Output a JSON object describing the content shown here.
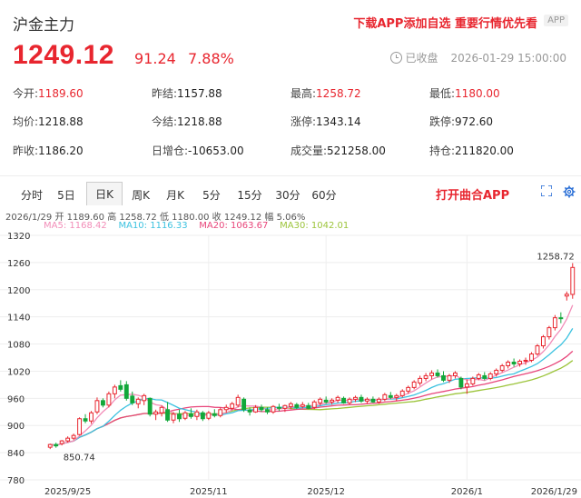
{
  "header": {
    "title": "沪金主力",
    "promo": "下载APP添加自选 重要行情优先看",
    "app_tag": "APP",
    "price": "1249.12",
    "change": "91.24",
    "change_pct": "7.88%",
    "status": "已收盘",
    "datetime": "2026-01-29 15:00:00"
  },
  "stats": [
    [
      {
        "label": "今开:",
        "value": "1189.60",
        "color": "red"
      },
      {
        "label": "昨结:",
        "value": "1157.88",
        "color": ""
      },
      {
        "label": "最高:",
        "value": "1258.72",
        "color": "red"
      },
      {
        "label": "最低:",
        "value": "1180.00",
        "color": "red"
      }
    ],
    [
      {
        "label": "均价:",
        "value": "1218.88",
        "color": ""
      },
      {
        "label": "今结:",
        "value": "1218.88",
        "color": ""
      },
      {
        "label": "涨停:",
        "value": "1343.14",
        "color": ""
      },
      {
        "label": "跌停:",
        "value": "972.60",
        "color": ""
      }
    ],
    [
      {
        "label": "昨收:",
        "value": "1186.20",
        "color": ""
      },
      {
        "label": "日增仓:",
        "value": "-10653.00",
        "color": ""
      },
      {
        "label": "成交量:",
        "value": "521258.00",
        "color": ""
      },
      {
        "label": "持仓:",
        "value": "211820.00",
        "color": ""
      }
    ]
  ],
  "tabs": [
    "分时",
    "5日",
    "日K",
    "周K",
    "月K",
    "5分",
    "15分",
    "30分",
    "60分"
  ],
  "active_tab": "日K",
  "open_app": "打开曲合APP",
  "kline_info": {
    "date": "2026/1/29",
    "open_label": "开",
    "open": "1189.60",
    "high_label": "高",
    "high": "1258.72",
    "low_label": "低",
    "low": "1180.00",
    "close_label": "收",
    "close": "1249.12",
    "amp_label": "幅",
    "amp": "5.06%"
  },
  "ma_info": [
    {
      "label": "MA5:",
      "value": "1168.42",
      "color": "#f28db8"
    },
    {
      "label": "MA10:",
      "value": "1116.33",
      "color": "#3cc2e0"
    },
    {
      "label": "MA20:",
      "value": "1063.67",
      "color": "#e8457a"
    },
    {
      "label": "MA30:",
      "value": "1042.01",
      "color": "#9cc43a"
    }
  ],
  "colors": {
    "up": "#e8262f",
    "down": "#12a83a",
    "ma5": "#f28db8",
    "ma10": "#3cc2e0",
    "ma20": "#e8457a",
    "ma30": "#9cc43a"
  },
  "icons": {
    "status": "clock-icon",
    "expand": "expand-icon",
    "settings": "gear-icon"
  },
  "chart_data": {
    "type": "candlestick",
    "ylim": [
      780,
      1320
    ],
    "yticks": [
      1320,
      1260,
      1200,
      1140,
      1080,
      1020,
      960,
      900,
      840,
      780
    ],
    "xticks": [
      {
        "label": "2025/9/25",
        "i": 3
      },
      {
        "label": "2025/11",
        "i": 27
      },
      {
        "label": "2025/12",
        "i": 47
      },
      {
        "label": "2026/1",
        "i": 71
      },
      {
        "label": "2026/1/29",
        "i": 89
      }
    ],
    "max_label": "1258.72",
    "min_label": "850.74",
    "candles": [
      [
        852,
        860,
        848,
        858
      ],
      [
        858,
        862,
        851,
        855
      ],
      [
        860,
        868,
        856,
        866
      ],
      [
        866,
        876,
        862,
        872
      ],
      [
        872,
        882,
        868,
        878
      ],
      [
        880,
        918,
        878,
        915
      ],
      [
        915,
        925,
        905,
        910
      ],
      [
        910,
        932,
        904,
        928
      ],
      [
        930,
        962,
        925,
        955
      ],
      [
        955,
        960,
        940,
        945
      ],
      [
        945,
        975,
        940,
        970
      ],
      [
        970,
        990,
        960,
        985
      ],
      [
        988,
        1000,
        975,
        980
      ],
      [
        990,
        998,
        955,
        960
      ],
      [
        965,
        975,
        945,
        950
      ],
      [
        948,
        962,
        938,
        958
      ],
      [
        955,
        970,
        945,
        966
      ],
      [
        960,
        962,
        920,
        925
      ],
      [
        925,
        935,
        912,
        930
      ],
      [
        928,
        944,
        920,
        940
      ],
      [
        935,
        952,
        908,
        912
      ],
      [
        912,
        930,
        905,
        925
      ],
      [
        925,
        935,
        908,
        915
      ],
      [
        916,
        932,
        912,
        928
      ],
      [
        926,
        938,
        915,
        920
      ],
      [
        920,
        935,
        912,
        930
      ],
      [
        928,
        932,
        910,
        915
      ],
      [
        916,
        932,
        912,
        928
      ],
      [
        926,
        936,
        918,
        922
      ],
      [
        922,
        940,
        918,
        935
      ],
      [
        935,
        946,
        928,
        940
      ],
      [
        938,
        952,
        934,
        948
      ],
      [
        945,
        968,
        940,
        962
      ],
      [
        958,
        962,
        930,
        935
      ],
      [
        934,
        940,
        922,
        930
      ],
      [
        930,
        945,
        928,
        940
      ],
      [
        940,
        946,
        930,
        935
      ],
      [
        935,
        940,
        925,
        930
      ],
      [
        930,
        945,
        926,
        942
      ],
      [
        940,
        948,
        932,
        938
      ],
      [
        938,
        946,
        930,
        944
      ],
      [
        942,
        952,
        936,
        948
      ],
      [
        946,
        950,
        936,
        940
      ],
      [
        942,
        952,
        938,
        946
      ],
      [
        944,
        950,
        936,
        938
      ],
      [
        940,
        956,
        936,
        952
      ],
      [
        950,
        962,
        944,
        958
      ],
      [
        956,
        964,
        948,
        952
      ],
      [
        952,
        960,
        946,
        956
      ],
      [
        956,
        966,
        950,
        962
      ],
      [
        960,
        964,
        948,
        950
      ],
      [
        950,
        962,
        946,
        958
      ],
      [
        958,
        966,
        952,
        962
      ],
      [
        962,
        968,
        950,
        954
      ],
      [
        954,
        962,
        948,
        958
      ],
      [
        958,
        964,
        950,
        952
      ],
      [
        952,
        962,
        948,
        958
      ],
      [
        958,
        972,
        954,
        968
      ],
      [
        966,
        974,
        958,
        962
      ],
      [
        962,
        970,
        954,
        966
      ],
      [
        966,
        980,
        962,
        976
      ],
      [
        976,
        988,
        970,
        984
      ],
      [
        984,
        1000,
        980,
        996
      ],
      [
        994,
        1010,
        988,
        1004
      ],
      [
        1004,
        1016,
        998,
        1010
      ],
      [
        1010,
        1022,
        1002,
        1016
      ],
      [
        1016,
        1024,
        1006,
        1010
      ],
      [
        1010,
        1020,
        996,
        1000
      ],
      [
        1000,
        1014,
        994,
        1010
      ],
      [
        1010,
        1020,
        1004,
        1016
      ],
      [
        1004,
        1008,
        980,
        985
      ],
      [
        985,
        1002,
        970,
        992
      ],
      [
        992,
        1008,
        988,
        1004
      ],
      [
        1004,
        1016,
        1000,
        1012
      ],
      [
        1010,
        1018,
        1000,
        1004
      ],
      [
        1004,
        1018,
        1000,
        1014
      ],
      [
        1014,
        1026,
        1008,
        1022
      ],
      [
        1022,
        1036,
        1018,
        1032
      ],
      [
        1032,
        1044,
        1026,
        1040
      ],
      [
        1040,
        1048,
        1030,
        1036
      ],
      [
        1036,
        1046,
        1030,
        1042
      ],
      [
        1042,
        1050,
        1034,
        1044
      ],
      [
        1044,
        1062,
        1040,
        1058
      ],
      [
        1058,
        1080,
        1054,
        1076
      ],
      [
        1076,
        1100,
        1070,
        1096
      ],
      [
        1096,
        1120,
        1090,
        1116
      ],
      [
        1116,
        1144,
        1110,
        1138
      ],
      [
        1138,
        1150,
        1126,
        1136
      ],
      [
        1186,
        1196,
        1176,
        1190
      ],
      [
        1189.6,
        1258.72,
        1180,
        1249.12
      ]
    ]
  }
}
